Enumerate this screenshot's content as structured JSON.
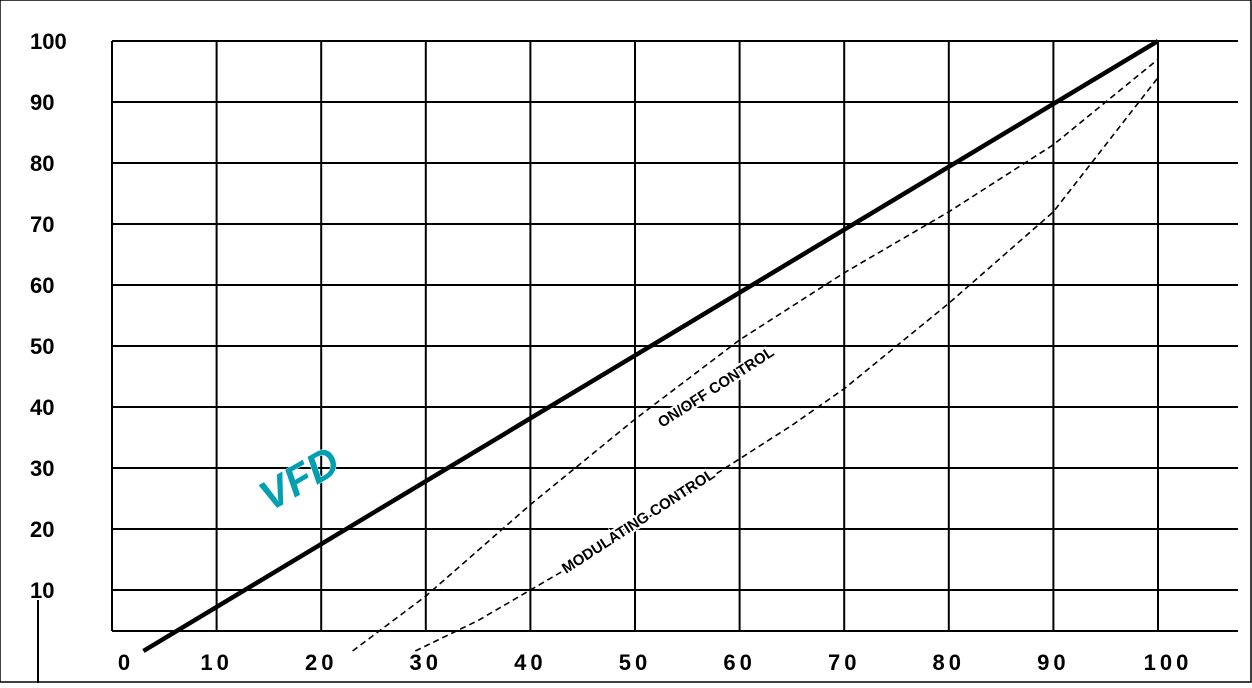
{
  "chart_data": {
    "type": "line",
    "title": "",
    "xlabel": "",
    "ylabel": "",
    "xlim": [
      0,
      100
    ],
    "ylim": [
      0,
      100
    ],
    "grid": true,
    "x_ticks": [
      "0",
      "10",
      "20",
      "30",
      "40",
      "50",
      "60",
      "70",
      "80",
      "90",
      "100"
    ],
    "y_ticks": [
      "10",
      "20",
      "30",
      "40",
      "50",
      "60",
      "70",
      "80",
      "90",
      "100"
    ],
    "series": [
      {
        "name": "VFD",
        "style": "solid",
        "color": "#00a0b0",
        "points": [
          [
            3,
            0
          ],
          [
            100,
            100
          ]
        ]
      },
      {
        "name": "ON/OFF CONTROL",
        "style": "dashed",
        "color": "#000000",
        "points": [
          [
            23,
            0
          ],
          [
            30,
            9
          ],
          [
            40,
            24
          ],
          [
            50,
            38
          ],
          [
            60,
            51
          ],
          [
            70,
            62
          ],
          [
            80,
            72
          ],
          [
            90,
            83
          ],
          [
            100,
            97
          ]
        ]
      },
      {
        "name": "MODULATING CONTROL",
        "style": "dashed",
        "color": "#000000",
        "points": [
          [
            29,
            0
          ],
          [
            35,
            5
          ],
          [
            45,
            15
          ],
          [
            55,
            26
          ],
          [
            65,
            37
          ],
          [
            70,
            43
          ],
          [
            80,
            57
          ],
          [
            90,
            72
          ],
          [
            95,
            83
          ],
          [
            100,
            94
          ]
        ]
      }
    ]
  }
}
